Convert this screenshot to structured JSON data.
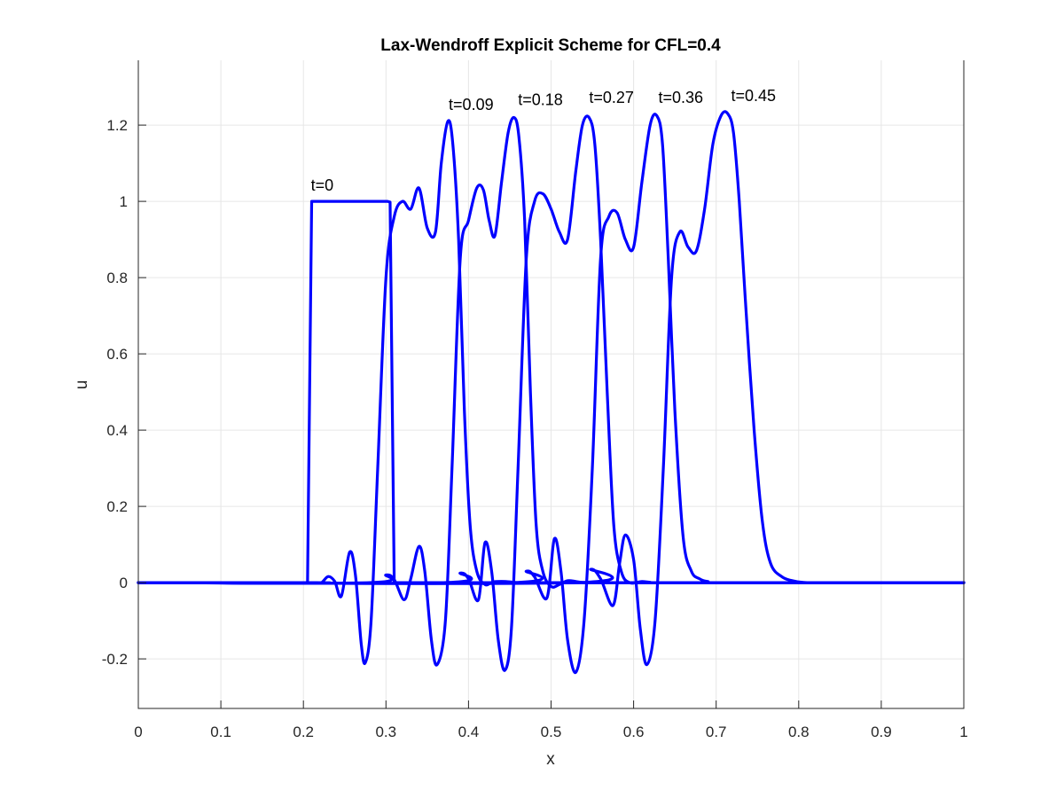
{
  "chart_data": {
    "type": "line",
    "title": "Lax-Wendroff Explicit Scheme for CFL=0.4",
    "xlabel": "x",
    "ylabel": "u",
    "xlim": [
      0,
      1
    ],
    "ylim": [
      -0.33,
      1.37
    ],
    "grid": true,
    "xticks": [
      0,
      0.1,
      0.2,
      0.3,
      0.4,
      0.5,
      0.6,
      0.7,
      0.8,
      0.9,
      1
    ],
    "xtick_labels": [
      "0",
      "0.1",
      "0.2",
      "0.3",
      "0.4",
      "0.5",
      "0.6",
      "0.7",
      "0.8",
      "0.9",
      "1"
    ],
    "yticks": [
      -0.2,
      0,
      0.2,
      0.4,
      0.6,
      0.8,
      1,
      1.2
    ],
    "ytick_labels": [
      "-0.2",
      "0",
      "0.2",
      "0.4",
      "0.6",
      "0.8",
      "1",
      "1.2"
    ],
    "line_color": "#0000ff",
    "series": [
      {
        "x": [
          0,
          0.204,
          0.205,
          0.21,
          0.302,
          0.305,
          0.31,
          1
        ],
        "y": [
          0,
          0,
          0.003,
          1,
          1,
          0.998,
          0,
          0
        ]
      },
      {
        "x": [
          0,
          0.215,
          0.222,
          0.23,
          0.238,
          0.246,
          0.256,
          0.263,
          0.27,
          0.275,
          0.282,
          0.29,
          0.3,
          0.31,
          0.32,
          0.33,
          0.34,
          0.35,
          0.36,
          0.367,
          0.375,
          0.381,
          0.388,
          0.395,
          0.402,
          0.41,
          0.42,
          0.43,
          0.445,
          0.46,
          0.48,
          1
        ],
        "y": [
          0,
          0,
          0,
          0.016,
          0.003,
          -0.035,
          0.08,
          0.02,
          -0.16,
          -0.21,
          -0.1,
          0.3,
          0.8,
          0.96,
          1.0,
          0.98,
          1.035,
          0.93,
          0.92,
          1.1,
          1.21,
          1.15,
          0.9,
          0.45,
          0.15,
          0.03,
          -0.005,
          0.002,
          0.003,
          0,
          0,
          0
        ]
      },
      {
        "x": [
          0,
          0.28,
          0.3,
          0.31,
          0.322,
          0.33,
          0.34,
          0.347,
          0.355,
          0.362,
          0.372,
          0.38,
          0.39,
          0.4,
          0.41,
          0.418,
          0.425,
          0.432,
          0.44,
          0.448,
          0.455,
          0.461,
          0.468,
          0.475,
          0.482,
          0.49,
          0.5,
          0.51,
          0.52,
          0.53,
          0.54,
          0.56,
          0.58,
          1
        ],
        "y": [
          0,
          0,
          0.02,
          0.008,
          -0.045,
          0.01,
          0.095,
          0.03,
          -0.15,
          -0.215,
          -0.1,
          0.3,
          0.85,
          0.95,
          1.035,
          1.03,
          0.95,
          0.91,
          1.05,
          1.18,
          1.22,
          1.17,
          0.95,
          0.5,
          0.15,
          0.03,
          -0.01,
          -0.005,
          0.005,
          0.003,
          0,
          0,
          0,
          0
        ]
      },
      {
        "x": [
          0,
          0.37,
          0.39,
          0.4,
          0.412,
          0.42,
          0.428,
          0.436,
          0.444,
          0.452,
          0.46,
          0.47,
          0.48,
          0.49,
          0.5,
          0.51,
          0.52,
          0.53,
          0.538,
          0.546,
          0.553,
          0.56,
          0.568,
          0.576,
          0.585,
          0.595,
          0.61,
          0.62,
          0.64,
          1
        ],
        "y": [
          0,
          0,
          0.025,
          0.01,
          -0.045,
          0.105,
          0.03,
          -0.15,
          -0.23,
          -0.12,
          0.3,
          0.85,
          1.0,
          1.02,
          0.98,
          0.92,
          0.9,
          1.08,
          1.2,
          1.22,
          1.15,
          0.9,
          0.5,
          0.15,
          0.03,
          0,
          0.003,
          0.001,
          0,
          0
        ]
      },
      {
        "x": [
          0,
          0.45,
          0.47,
          0.48,
          0.495,
          0.504,
          0.512,
          0.52,
          0.53,
          0.54,
          0.55,
          0.56,
          0.57,
          0.58,
          0.59,
          0.6,
          0.61,
          0.62,
          0.628,
          0.635,
          0.642,
          0.65,
          0.66,
          0.67,
          0.68,
          0.69,
          0.71,
          1
        ],
        "y": [
          0,
          0,
          0.03,
          0.015,
          -0.04,
          0.115,
          0.03,
          -0.15,
          -0.235,
          -0.1,
          0.3,
          0.85,
          0.96,
          0.97,
          0.9,
          0.88,
          1.05,
          1.2,
          1.225,
          1.15,
          0.85,
          0.45,
          0.12,
          0.03,
          0.01,
          0.003,
          0,
          0
        ]
      },
      {
        "x": [
          0,
          0.53,
          0.548,
          0.56,
          0.575,
          0.583,
          0.59,
          0.6,
          0.608,
          0.616,
          0.626,
          0.636,
          0.646,
          0.656,
          0.666,
          0.676,
          0.686,
          0.696,
          0.706,
          0.714,
          0.721,
          0.728,
          0.736,
          0.746,
          0.756,
          0.766,
          0.78,
          0.795,
          0.81,
          0.83,
          1
        ],
        "y": [
          0,
          0,
          0.035,
          0.01,
          -0.06,
          0.05,
          0.125,
          0.06,
          -0.12,
          -0.215,
          -0.1,
          0.3,
          0.8,
          0.92,
          0.88,
          0.87,
          0.98,
          1.15,
          1.225,
          1.23,
          1.18,
          1.0,
          0.72,
          0.4,
          0.16,
          0.05,
          0.015,
          0.004,
          0,
          0,
          0
        ]
      }
    ],
    "annotations": [
      {
        "text": "t=0",
        "x": 0.209,
        "y": 1.028
      },
      {
        "text": "t=0.09",
        "x": 0.376,
        "y": 1.24
      },
      {
        "text": "t=0.18",
        "x": 0.46,
        "y": 1.253
      },
      {
        "text": "t=0.27",
        "x": 0.546,
        "y": 1.258
      },
      {
        "text": "t=0.36",
        "x": 0.63,
        "y": 1.258
      },
      {
        "text": "t=0.45",
        "x": 0.718,
        "y": 1.263
      }
    ]
  }
}
